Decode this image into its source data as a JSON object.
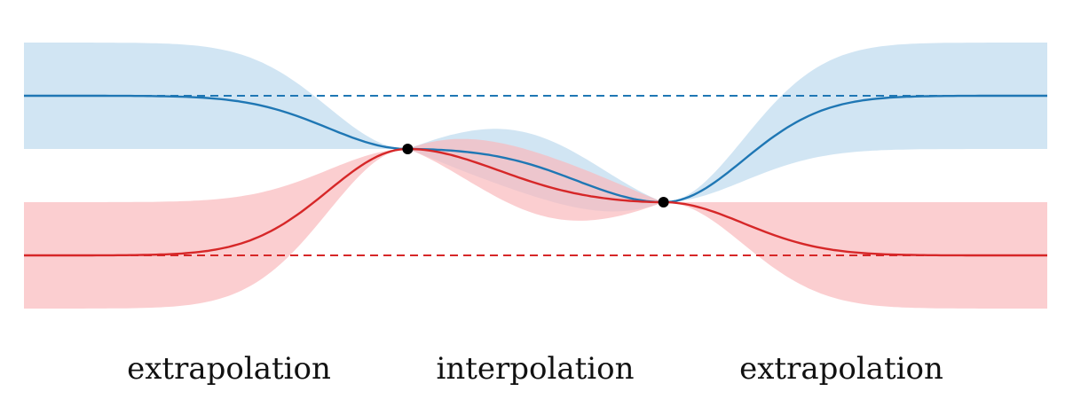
{
  "colors": {
    "blue": "#1f77b4",
    "blue_band": "#c6dff0",
    "red": "#d62728",
    "red_band": "#f9b9bc",
    "point": "#000000",
    "background": "#ffffff"
  },
  "labels": {
    "left": "extrapolation",
    "middle": "interpolation",
    "right": "extrapolation"
  },
  "chart_data": {
    "type": "line",
    "x_range": [
      -1,
      1
    ],
    "observations": [
      {
        "x": -0.25,
        "y": 0.0
      },
      {
        "x": 0.25,
        "y": -1.0
      }
    ],
    "series": [
      {
        "color": "#1f77b4",
        "prior_mean": 1.0,
        "band_halfwidth": 1.0,
        "style": "solid"
      },
      {
        "color": "#d62728",
        "prior_mean": -2.0,
        "band_halfwidth": 1.0,
        "style": "solid"
      }
    ],
    "dashed_lines": [
      {
        "y": 1.0,
        "color": "#1f77b4"
      },
      {
        "y": -2.0,
        "color": "#d62728"
      }
    ],
    "grid": false,
    "legend": "none"
  }
}
